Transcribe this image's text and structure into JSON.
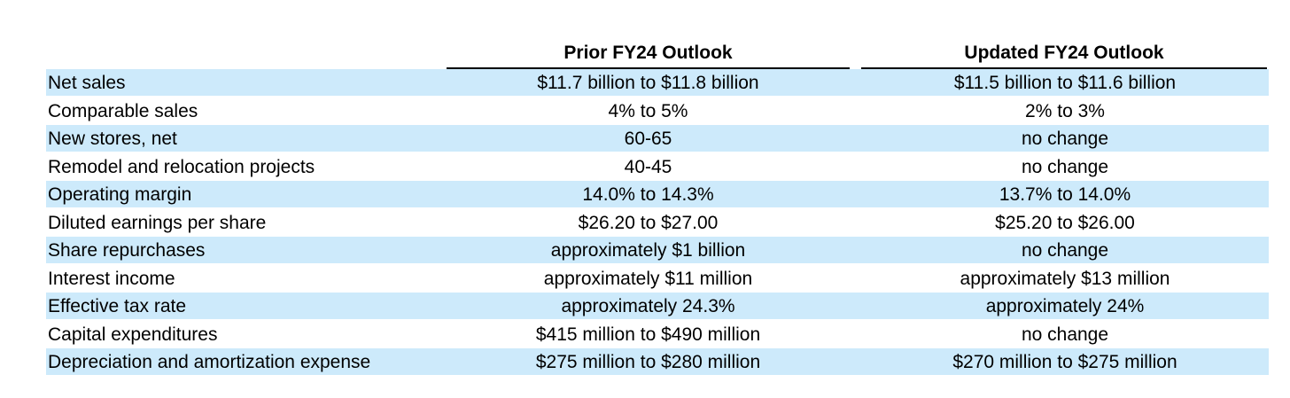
{
  "headers": {
    "prior": "Prior FY24 Outlook",
    "updated": "Updated FY24 Outlook"
  },
  "rows": [
    {
      "label": "Net sales",
      "prior": "$11.7 billion to $11.8 billion",
      "updated": "$11.5 billion to $11.6 billion"
    },
    {
      "label": "Comparable sales",
      "prior": "4% to 5%",
      "updated": "2% to 3%"
    },
    {
      "label": "New stores, net",
      "prior": "60-65",
      "updated": "no change"
    },
    {
      "label": "Remodel and relocation projects",
      "prior": "40-45",
      "updated": "no change"
    },
    {
      "label": "Operating margin",
      "prior": "14.0% to 14.3%",
      "updated": "13.7% to 14.0%"
    },
    {
      "label": "Diluted earnings per share",
      "prior": "$26.20 to $27.00",
      "updated": "$25.20 to $26.00"
    },
    {
      "label": "Share repurchases",
      "prior": "approximately $1 billion",
      "updated": "no change"
    },
    {
      "label": "Interest income",
      "prior": "approximately $11 million",
      "updated": "approximately $13 million"
    },
    {
      "label": "Effective tax rate",
      "prior": "approximately 24.3%",
      "updated": "approximately 24%"
    },
    {
      "label": "Capital expenditures",
      "prior": "$415 million to $490 million",
      "updated": "no change"
    },
    {
      "label": "Depreciation and amortization expense",
      "prior": "$275 million to $280 million",
      "updated": "$270 million to $275 million"
    }
  ],
  "colors": {
    "row_shade": "#cdeafb",
    "rule": "#000000"
  }
}
